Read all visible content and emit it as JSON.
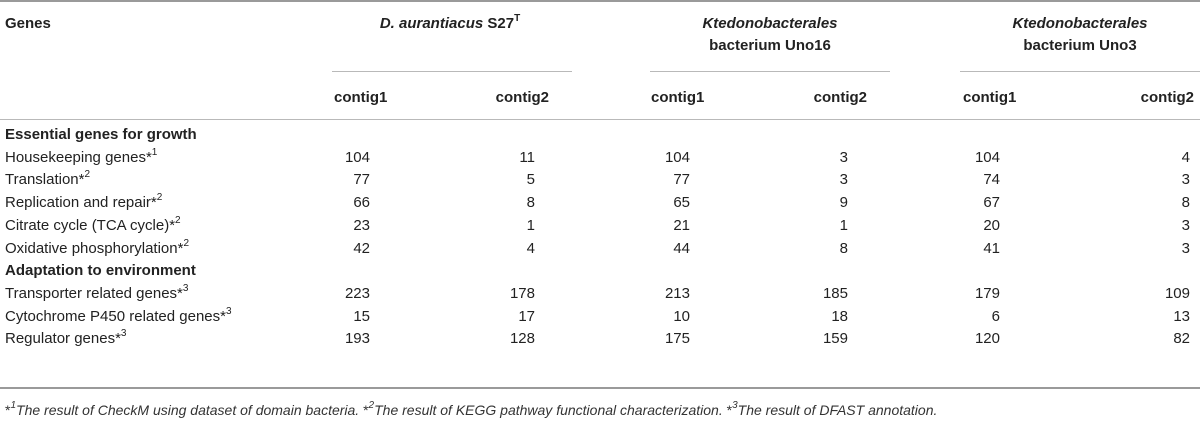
{
  "header": {
    "genes_label": "Genes",
    "org1": {
      "name": "D. aurantiacus",
      "suffix": " S27",
      "sup": "T"
    },
    "org2": {
      "line1": "Ktedonobacterales",
      "line2": "bacterium Uno16"
    },
    "org3": {
      "line1": "Ktedonobacterales",
      "line2": "bacterium Uno3"
    },
    "contig1": "contig1",
    "contig2": "contig2"
  },
  "sections": [
    {
      "title": "Essential genes for growth",
      "rows": [
        {
          "label": "Housekeeping genes",
          "mark": "*",
          "num": "1",
          "values": [
            "104",
            "11",
            "104",
            "3",
            "104",
            "4"
          ]
        },
        {
          "label": "Translation",
          "mark": "*",
          "num": "2",
          "values": [
            "77",
            "5",
            "77",
            "3",
            "74",
            "3"
          ]
        },
        {
          "label": "Replication and repair",
          "mark": "*",
          "num": "2",
          "values": [
            "66",
            "8",
            "65",
            "9",
            "67",
            "8"
          ]
        },
        {
          "label": "Citrate cycle (TCA cycle)",
          "mark": "*",
          "num": "2",
          "values": [
            "23",
            "1",
            "21",
            "1",
            "20",
            "3"
          ]
        },
        {
          "label": "Oxidative phosphorylation",
          "mark": "*",
          "num": "2",
          "values": [
            "42",
            "4",
            "44",
            "8",
            "41",
            "3"
          ]
        }
      ]
    },
    {
      "title": "Adaptation to environment",
      "rows": [
        {
          "label": "Transporter related genes",
          "mark": "*",
          "num": "3",
          "values": [
            "223",
            "178",
            "213",
            "185",
            "179",
            "109"
          ]
        },
        {
          "label": "Cytochrome P450 related genes",
          "mark": "*",
          "num": "3",
          "values": [
            "15",
            "17",
            "10",
            "18",
            "6",
            "13"
          ]
        },
        {
          "label": "Regulator genes",
          "mark": "*",
          "num": "3",
          "values": [
            "193",
            "128",
            "175",
            "159",
            "120",
            "82"
          ]
        }
      ]
    }
  ],
  "footnote": [
    {
      "mark": "*",
      "num": "1",
      "text": "The result of CheckM using dataset of domain bacteria. "
    },
    {
      "mark": "*",
      "num": "2",
      "text": "The result of KEGG pathway functional characterization. "
    },
    {
      "mark": "*",
      "num": "3",
      "text": "The result of DFAST annotation."
    }
  ]
}
